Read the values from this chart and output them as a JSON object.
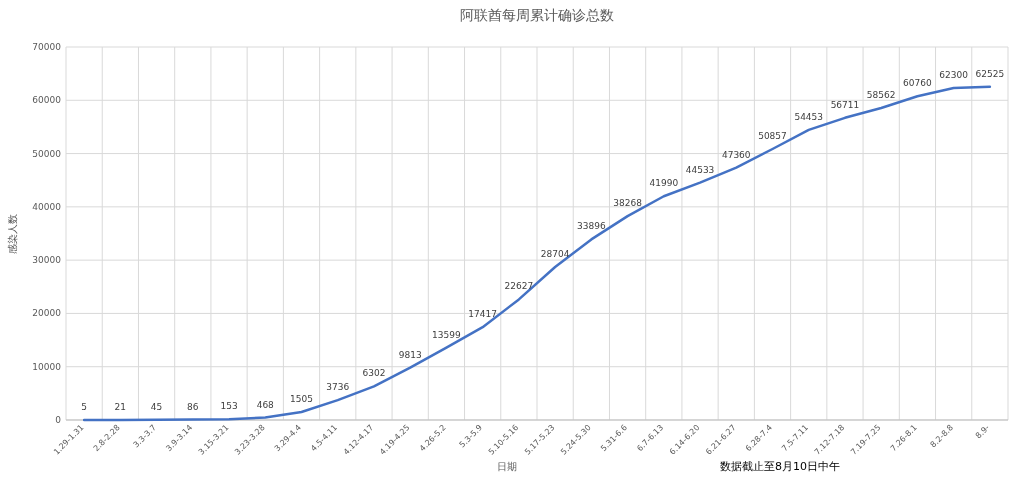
{
  "chart_data": {
    "type": "line",
    "title": "阿联酋每周累计确诊总数",
    "xlabel": "日期",
    "ylabel": "感染人数",
    "categories": [
      "1.29-1.31",
      "2.8-2.28",
      "3.3-3.7",
      "3.9-3.14",
      "3.15-3.21",
      "3.23-3.28",
      "3.29-4.4",
      "4.5-4.11",
      "4.12-4.17",
      "4.19-4.25",
      "4.26-5.2",
      "5.3-5.9",
      "5.10-5.16",
      "5.17-5.23",
      "5.24-5.30",
      "5.31-6.6",
      "6.7-6.13",
      "6.14-6.20",
      "6.21-6.27",
      "6.28-7.4",
      "7.5-7.11",
      "7.12-7.18",
      "7.19-7.25",
      "7.26-8.1",
      "8.2-8.8",
      "8.9-"
    ],
    "series": [
      {
        "color": "#4472c4",
        "values": [
          5,
          21,
          45,
          86,
          153,
          468,
          1505,
          3736,
          6302,
          9813,
          13599,
          17417,
          22627,
          28704,
          33896,
          38268,
          41990,
          44533,
          47360,
          50857,
          54453,
          56711,
          58562,
          60760,
          62300,
          62525
        ]
      }
    ],
    "ylim": [
      0,
      70000
    ],
    "yticks": [
      0,
      10000,
      20000,
      30000,
      40000,
      50000,
      60000,
      70000
    ],
    "grid": true,
    "data_labels": true,
    "marker": "none",
    "line_style": "solid",
    "annotations": [
      "数据截止至8月10日中午"
    ]
  }
}
